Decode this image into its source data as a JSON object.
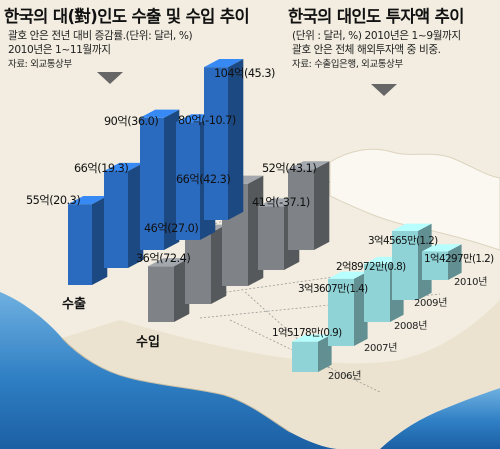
{
  "colors": {
    "export": "#2b6bbf",
    "import": "#7f8388",
    "investment": "#8fd3d6",
    "sea": "#2f7fc4",
    "land": "#f2ede0"
  },
  "left_panel": {
    "title": "한국의 대(對)인도 수출 및 수입 추이",
    "note1": "괄호 안은 전년 대비 증감률.(단위: 달러, %)",
    "note2": "2010년은 1~11월까지",
    "source": "자료: 외교통상부"
  },
  "right_panel": {
    "title": "한국의 대인도 투자액 추이",
    "note1": "(단위 : 달러, %) 2010년은 1~9월까지",
    "note2": "괄호 안은 전체 해외투자액 중 비중.",
    "source": "자료: 수출입은행, 외교통상부"
  },
  "chart_data": [
    {
      "type": "bar",
      "title": "한국의 대(對)인도 수출 및 수입 추이",
      "series": [
        {
          "name": "수출",
          "values": [
            55,
            66,
            90,
            80,
            104
          ],
          "labels": [
            "55억(20.3)",
            "66억(19.3)",
            "90억(36.0)",
            "80억(-10.7)",
            "104억(45.3)"
          ]
        },
        {
          "name": "수입",
          "values": [
            36,
            46,
            66,
            41,
            52
          ],
          "labels": [
            "36억(72.4)",
            "46억(27.0)",
            "66억(42.3)",
            "41억(-37.1)",
            "52억(43.1)"
          ]
        }
      ]
    },
    {
      "type": "bar",
      "title": "한국의 대인도 투자액 추이",
      "categories": [
        "2006년",
        "2007년",
        "2008년",
        "2009년",
        "2010년"
      ],
      "values": [
        151780000,
        336070000,
        289720000,
        345650000,
        142970000
      ],
      "labels": [
        "1억5178만(0.9)",
        "3억3607만(1.4)",
        "2억8972만(0.8)",
        "3억4565만(1.2)",
        "1억4297만(1.2)"
      ]
    }
  ]
}
